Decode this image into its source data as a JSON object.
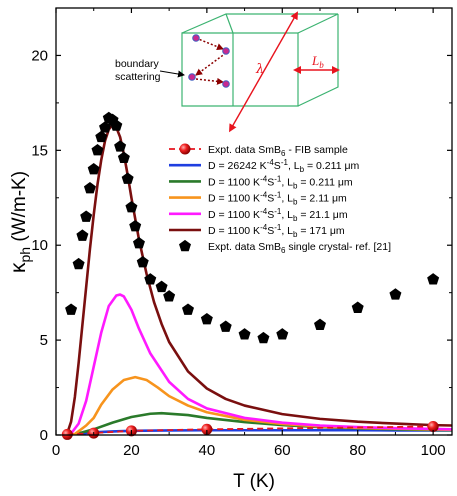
{
  "chart_data": {
    "type": "line",
    "xlabel": "T (K)",
    "ylabel_main": "κ",
    "ylabel_sub": "ph",
    "ylabel_units": " (W/m-K)",
    "xlim": [
      0,
      105
    ],
    "ylim": [
      0,
      22.5
    ],
    "xticks": [
      0,
      20,
      40,
      60,
      80,
      100
    ],
    "yticks": [
      0,
      5,
      10,
      15,
      20
    ],
    "series": [
      {
        "name": "Expt. data SmB6 - FIB sample",
        "kind": "scatter",
        "color": "#e8141e",
        "x": [
          3,
          10,
          20,
          40,
          100
        ],
        "y": [
          0.03,
          0.1,
          0.22,
          0.3,
          0.45
        ]
      },
      {
        "name": "D = 26242 K-4S-1, Lb = 0.211 μm",
        "kind": "line",
        "color": "#1f3fe0",
        "x": [
          2,
          4,
          6,
          8,
          10,
          15,
          20,
          30,
          40,
          50,
          60,
          70,
          80,
          90,
          100,
          105
        ],
        "y": [
          0.002,
          0.02,
          0.06,
          0.1,
          0.14,
          0.19,
          0.22,
          0.24,
          0.25,
          0.25,
          0.25,
          0.25,
          0.25,
          0.24,
          0.24,
          0.24
        ]
      },
      {
        "name": "D = 1100 K-4S-1, Lb = 0.211 μm",
        "kind": "line",
        "color": "#2a7a2a",
        "x": [
          2,
          5,
          10,
          15,
          20,
          25,
          28,
          35,
          40,
          50,
          60,
          70,
          80,
          90,
          100,
          105
        ],
        "y": [
          0.0,
          0.03,
          0.3,
          0.65,
          0.95,
          1.12,
          1.15,
          1.05,
          0.9,
          0.68,
          0.52,
          0.42,
          0.35,
          0.3,
          0.26,
          0.25
        ]
      },
      {
        "name": "D = 1100 K-4S-1, Lb = 2.11 μm",
        "kind": "line",
        "color": "#f7941d",
        "x": [
          2,
          5,
          8,
          10,
          12,
          15,
          18,
          21,
          24,
          27,
          30,
          35,
          40,
          50,
          60,
          70,
          80,
          90,
          100,
          105
        ],
        "y": [
          0.0,
          0.05,
          0.5,
          0.9,
          1.6,
          2.4,
          2.9,
          3.05,
          2.9,
          2.5,
          2.05,
          1.55,
          1.2,
          0.8,
          0.58,
          0.45,
          0.38,
          0.33,
          0.29,
          0.27
        ]
      },
      {
        "name": "D = 1100 K-4S-1, Lb = 21.1 μm",
        "kind": "line",
        "color": "#ff1aff",
        "x": [
          2,
          4,
          6,
          8,
          10,
          12,
          14,
          16,
          17,
          18,
          20,
          22,
          25,
          30,
          35,
          40,
          50,
          60,
          70,
          80,
          90,
          100,
          105
        ],
        "y": [
          0.0,
          0.08,
          0.6,
          1.8,
          3.6,
          5.4,
          6.8,
          7.35,
          7.4,
          7.3,
          6.6,
          5.6,
          4.3,
          2.8,
          1.9,
          1.4,
          0.9,
          0.65,
          0.5,
          0.42,
          0.36,
          0.32,
          0.3
        ]
      },
      {
        "name": "D = 1100 K-4S-1, Lb = 171 μm",
        "kind": "line",
        "color": "#7a0f0f",
        "x": [
          2,
          3,
          4,
          5,
          6,
          7,
          8,
          9,
          10,
          11,
          12,
          13,
          14,
          15,
          16,
          17,
          18,
          19,
          20,
          22,
          24,
          26,
          28,
          30,
          35,
          40,
          45,
          50,
          60,
          70,
          80,
          90,
          100,
          105
        ],
        "y": [
          0.0,
          0.1,
          0.7,
          2.0,
          3.8,
          5.8,
          7.8,
          9.8,
          11.6,
          13.2,
          14.5,
          15.5,
          16.1,
          16.35,
          16.2,
          15.7,
          14.8,
          13.7,
          12.5,
          10.3,
          8.5,
          7.0,
          5.85,
          4.9,
          3.35,
          2.45,
          1.9,
          1.55,
          1.1,
          0.85,
          0.7,
          0.6,
          0.52,
          0.5
        ]
      },
      {
        "name": "Expt. data SmB6 single crystal- ref. [21]",
        "kind": "scatter",
        "marker": "pentagon",
        "color": "#000000",
        "x": [
          4,
          6,
          7,
          8,
          9,
          10,
          11,
          12,
          13,
          14,
          15,
          16,
          17,
          18,
          19,
          20,
          21,
          22,
          23,
          25,
          28,
          30,
          35,
          40,
          45,
          50,
          55,
          60,
          70,
          80,
          90,
          100
        ],
        "y": [
          6.6,
          9.0,
          10.5,
          11.5,
          13.0,
          14.0,
          15.0,
          15.7,
          16.2,
          16.7,
          16.6,
          16.3,
          15.2,
          14.6,
          13.5,
          12.0,
          11.0,
          10.1,
          9.1,
          8.2,
          7.8,
          7.3,
          6.6,
          6.1,
          5.7,
          5.3,
          5.1,
          5.3,
          5.8,
          6.7,
          7.4,
          8.2
        ]
      }
    ],
    "legend": {
      "placement": "right-middle",
      "entries": [
        {
          "main": "Expt. data SmB",
          "sub": "6",
          "rest": " - FIB sample"
        },
        {
          "main": "D = 26242 K",
          "sup1": "-4",
          "mid": "S",
          "sup2": "-1",
          "rest": ", L",
          "sub": "b",
          "rest2": " = 0.211 μm"
        },
        {
          "main": "D = 1100 K",
          "sup1": "-4",
          "mid": "S",
          "sup2": "-1",
          "rest": ", L",
          "sub": "b",
          "rest2": " = 0.211 μm"
        },
        {
          "main": "D = 1100 K",
          "sup1": "-4",
          "mid": "S",
          "sup2": "-1",
          "rest": ", L",
          "sub": "b",
          "rest2": " = 2.11 μm"
        },
        {
          "main": "D = 1100 K",
          "sup1": "-4",
          "mid": "S",
          "sup2": "-1",
          "rest": ", L",
          "sub": "b",
          "rest2": " = 21.1 μm"
        },
        {
          "main": "D = 1100 K",
          "sup1": "-4",
          "mid": "S",
          "sup2": "-1",
          "rest": ", L",
          "sub": "b",
          "rest2": " = 171 μm"
        },
        {
          "main": "Expt. data SmB",
          "sub": "6",
          "rest": " single crystal- ref. [21]"
        }
      ]
    },
    "inset": {
      "boundary_label_line1": "boundary",
      "boundary_label_line2": "scattering",
      "lambda": "λ",
      "lb_main": "L",
      "lb_sub": "b",
      "box_color": "#3cb371",
      "arrow_color": "#e8141e"
    }
  }
}
